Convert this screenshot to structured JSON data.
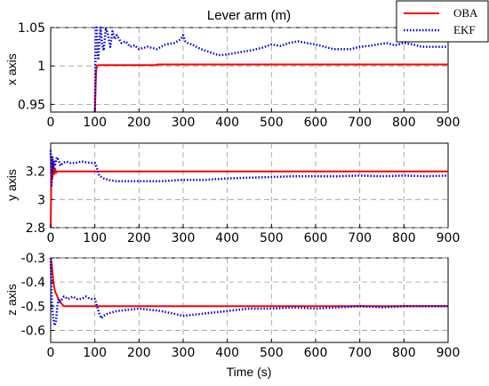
{
  "colors": {
    "oba": "#ff0000",
    "ekf": "#0000e0",
    "grid": "#9a9a9a",
    "axis": "#000000",
    "frame": "#6b6b6b"
  },
  "legend": {
    "placement": "top-right",
    "entries": [
      {
        "name": "OBA",
        "style": "solid",
        "color": "#ff0000"
      },
      {
        "name": "EKF",
        "style": "dotted",
        "color": "#0000e0"
      }
    ]
  },
  "chart_data": [
    {
      "type": "line",
      "title": "Lever arm (m)",
      "ylabel": "x axis",
      "xlabel": "",
      "xlim": [
        0,
        900
      ],
      "ylim": [
        0.94,
        1.05
      ],
      "xticks": [
        0,
        100,
        200,
        300,
        400,
        500,
        600,
        700,
        800,
        900
      ],
      "yticks": [
        0.95,
        1,
        1.05
      ],
      "ytick_labels": [
        "0.95",
        "1",
        "1.05"
      ],
      "grid": true,
      "series": [
        {
          "name": "OBA",
          "x": [
            100,
            101,
            102,
            103,
            105,
            108,
            110,
            115,
            120,
            140,
            141,
            160,
            175,
            176,
            240,
            241,
            380,
            381,
            470,
            500,
            540,
            600,
            640,
            700,
            750,
            800,
            900
          ],
          "y": [
            0.94,
            0.96,
            0.98,
            0.995,
            1.0,
            1.001,
            1.001,
            1.001,
            1.001,
            1.001,
            1.001,
            1.001,
            1.001,
            1.001,
            1.001,
            1.002,
            1.002,
            1.002,
            1.002,
            1.002,
            1.002,
            1.002,
            1.002,
            1.002,
            1.002,
            1.002,
            1.002
          ]
        },
        {
          "name": "EKF",
          "x": [
            100,
            101,
            102,
            103,
            104,
            106,
            108,
            110,
            113,
            116,
            120,
            125,
            130,
            135,
            140,
            145,
            150,
            160,
            170,
            180,
            190,
            200,
            220,
            240,
            260,
            280,
            295,
            300,
            305,
            310,
            320,
            340,
            360,
            380,
            400,
            420,
            440,
            460,
            480,
            500,
            520,
            540,
            560,
            580,
            600,
            620,
            640,
            660,
            680,
            700,
            720,
            740,
            760,
            780,
            800,
            820,
            840,
            860,
            880,
            900
          ],
          "y": [
            0.94,
            0.98,
            1.04,
            1.06,
            1.05,
            1.02,
            1.01,
            1.03,
            1.05,
            1.03,
            1.02,
            1.05,
            1.04,
            1.025,
            1.045,
            1.035,
            1.04,
            1.03,
            1.032,
            1.025,
            1.027,
            1.022,
            1.025,
            1.022,
            1.028,
            1.03,
            1.035,
            1.04,
            1.032,
            1.03,
            1.028,
            1.022,
            1.018,
            1.014,
            1.015,
            1.017,
            1.019,
            1.021,
            1.024,
            1.028,
            1.026,
            1.03,
            1.032,
            1.03,
            1.028,
            1.025,
            1.022,
            1.022,
            1.022,
            1.025,
            1.026,
            1.028,
            1.03,
            1.027,
            1.03,
            1.028,
            1.025,
            1.025,
            1.025,
            1.025
          ]
        }
      ]
    },
    {
      "type": "line",
      "title": "",
      "ylabel": "y axis",
      "xlabel": "",
      "xlim": [
        0,
        900
      ],
      "ylim": [
        2.8,
        3.4
      ],
      "xticks": [
        0,
        100,
        200,
        300,
        400,
        500,
        600,
        700,
        800,
        900
      ],
      "yticks": [
        2.8,
        3,
        3.2
      ],
      "ytick_labels": [
        "2.8",
        "3",
        "3.2"
      ],
      "grid": true,
      "series": [
        {
          "name": "OBA",
          "x": [
            0,
            2,
            4,
            6,
            8,
            10,
            12,
            15,
            20,
            30,
            50,
            100,
            200,
            300,
            500,
            700,
            900
          ],
          "y": [
            2.8,
            3.3,
            3.15,
            3.25,
            3.18,
            3.22,
            3.19,
            3.2,
            3.2,
            3.2,
            3.2,
            3.2,
            3.2,
            3.2,
            3.2,
            3.2,
            3.2
          ]
        },
        {
          "name": "EKF",
          "x": [
            0,
            2,
            4,
            6,
            8,
            10,
            14,
            18,
            22,
            28,
            35,
            45,
            55,
            70,
            90,
            100,
            105,
            110,
            115,
            120,
            130,
            150,
            200,
            250,
            300,
            350,
            400,
            450,
            500,
            550,
            600,
            650,
            700,
            750,
            800,
            850,
            900
          ],
          "y": [
            3.35,
            3.1,
            3.3,
            3.22,
            3.28,
            3.25,
            3.3,
            3.28,
            3.24,
            3.26,
            3.27,
            3.26,
            3.26,
            3.27,
            3.26,
            3.26,
            3.22,
            3.17,
            3.16,
            3.15,
            3.14,
            3.13,
            3.13,
            3.13,
            3.14,
            3.14,
            3.15,
            3.155,
            3.16,
            3.165,
            3.165,
            3.165,
            3.17,
            3.165,
            3.17,
            3.165,
            3.17
          ]
        }
      ]
    },
    {
      "type": "line",
      "title": "",
      "ylabel": "z axis",
      "xlabel": "Time (s)",
      "xlim": [
        0,
        900
      ],
      "ylim": [
        -0.65,
        -0.3
      ],
      "xticks": [
        0,
        100,
        200,
        300,
        400,
        500,
        600,
        700,
        800,
        900
      ],
      "yticks": [
        -0.3,
        -0.4,
        -0.5,
        -0.6
      ],
      "ytick_labels": [
        "-0.3",
        "-0.4",
        "-0.5",
        "-0.6"
      ],
      "grid": true,
      "series": [
        {
          "name": "OBA",
          "x": [
            0,
            2,
            4,
            6,
            8,
            10,
            15,
            20,
            25,
            30,
            50,
            100,
            200,
            300,
            500,
            700,
            900
          ],
          "y": [
            -0.3,
            -0.32,
            -0.36,
            -0.4,
            -0.42,
            -0.44,
            -0.46,
            -0.48,
            -0.49,
            -0.5,
            -0.5,
            -0.5,
            -0.5,
            -0.5,
            -0.5,
            -0.5,
            -0.5
          ]
        },
        {
          "name": "EKF",
          "x": [
            0,
            3,
            6,
            9,
            12,
            15,
            18,
            22,
            26,
            30,
            40,
            50,
            60,
            70,
            80,
            90,
            100,
            105,
            110,
            115,
            120,
            130,
            150,
            200,
            250,
            300,
            350,
            400,
            450,
            500,
            550,
            600,
            650,
            700,
            750,
            800,
            850,
            900
          ],
          "y": [
            -0.3,
            -0.5,
            -0.55,
            -0.58,
            -0.56,
            -0.5,
            -0.47,
            -0.48,
            -0.47,
            -0.46,
            -0.47,
            -0.46,
            -0.47,
            -0.47,
            -0.46,
            -0.47,
            -0.47,
            -0.5,
            -0.53,
            -0.55,
            -0.54,
            -0.53,
            -0.52,
            -0.51,
            -0.52,
            -0.54,
            -0.53,
            -0.52,
            -0.51,
            -0.51,
            -0.505,
            -0.51,
            -0.505,
            -0.5,
            -0.505,
            -0.5,
            -0.5,
            -0.5
          ]
        }
      ]
    }
  ]
}
